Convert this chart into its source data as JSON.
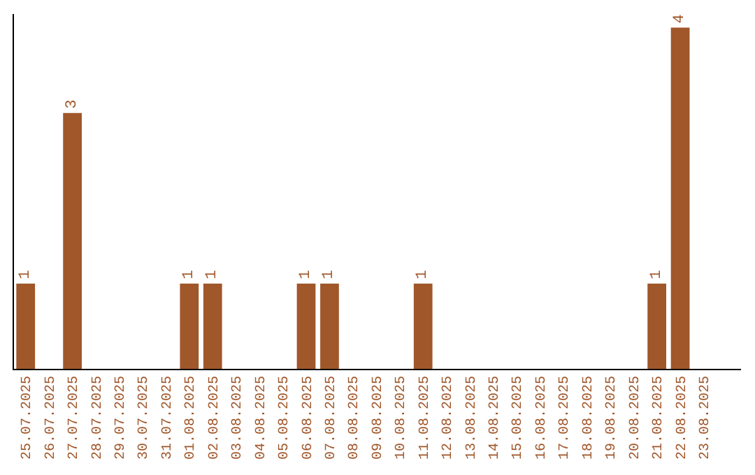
{
  "chart_data": {
    "type": "bar",
    "categories": [
      "25.07.2025",
      "26.07.2025",
      "27.07.2025",
      "28.07.2025",
      "29.07.2025",
      "30.07.2025",
      "31.07.2025",
      "01.08.2025",
      "02.08.2025",
      "03.08.2025",
      "04.08.2025",
      "05.08.2025",
      "06.08.2025",
      "07.08.2025",
      "08.08.2025",
      "09.08.2025",
      "10.08.2025",
      "11.08.2025",
      "12.08.2025",
      "13.08.2025",
      "14.08.2025",
      "15.08.2025",
      "16.08.2025",
      "17.08.2025",
      "18.08.2025",
      "19.08.2025",
      "20.08.2025",
      "21.08.2025",
      "22.08.2025",
      "23.08.2025"
    ],
    "values": [
      1,
      0,
      3,
      0,
      0,
      0,
      0,
      1,
      1,
      0,
      0,
      0,
      1,
      1,
      0,
      0,
      0,
      1,
      0,
      0,
      0,
      0,
      0,
      0,
      0,
      0,
      0,
      1,
      4,
      0
    ],
    "value_labels": [
      "1",
      null,
      "3",
      null,
      null,
      null,
      null,
      "1",
      "1",
      null,
      null,
      null,
      "1",
      "1",
      null,
      null,
      null,
      "1",
      null,
      null,
      null,
      null,
      null,
      null,
      null,
      null,
      null,
      "1",
      "4",
      null
    ],
    "color": "#a0572a",
    "ylim": [
      0,
      4.16
    ],
    "tick_labels": "x",
    "grid": false
  }
}
